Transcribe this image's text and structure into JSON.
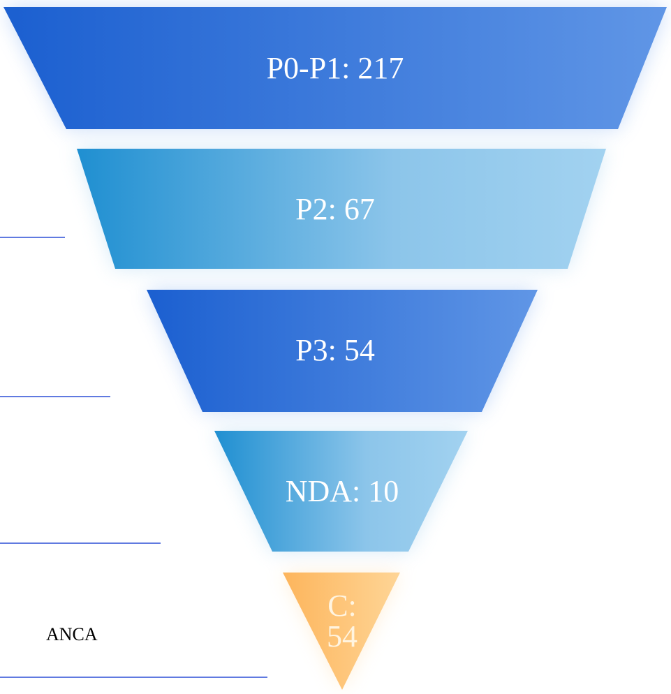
{
  "segments": [
    {
      "label": "P0-P1: 217"
    },
    {
      "label": "P2: 67"
    },
    {
      "label": "P3: 54"
    },
    {
      "label": "NDA: 10"
    },
    {
      "label": "C: 54"
    }
  ],
  "note": "ANCA"
}
